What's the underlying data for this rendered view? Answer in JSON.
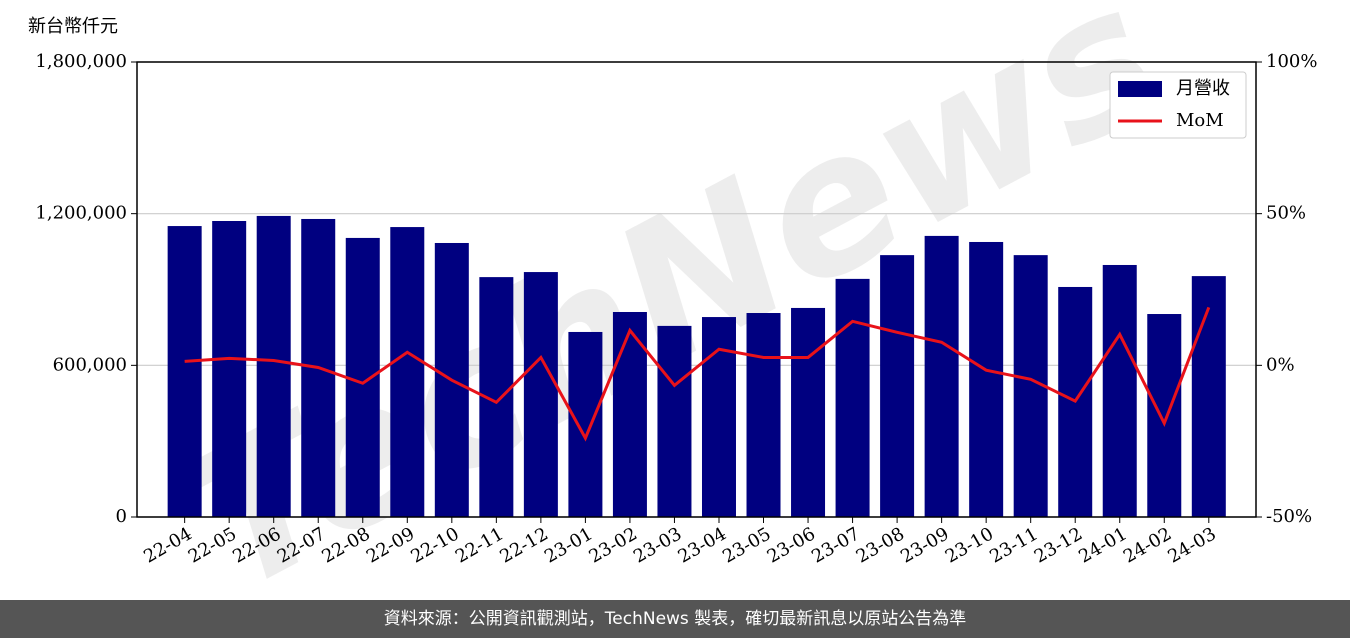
{
  "chart_data": {
    "type": "bar-line",
    "y_label": "新台幣仟元",
    "footer": "資料來源：公開資訊觀測站，TechNews 製表，確切最新訊息以原站公告為準",
    "watermark": "TechNews",
    "categories": [
      "22-04",
      "22-05",
      "22-06",
      "22-07",
      "22-08",
      "22-09",
      "22-10",
      "22-11",
      "22-12",
      "23-01",
      "23-02",
      "23-03",
      "23-04",
      "23-05",
      "23-06",
      "23-07",
      "23-08",
      "23-09",
      "23-10",
      "23-11",
      "23-12",
      "24-01",
      "24-02",
      "24-03"
    ],
    "series": [
      {
        "name": "月營收",
        "type": "bar",
        "color": "#000080",
        "values": [
          1151000,
          1171000,
          1191000,
          1179000,
          1104000,
          1147000,
          1084000,
          949000,
          969000,
          732000,
          811000,
          756000,
          791000,
          807000,
          827000,
          942000,
          1036000,
          1112000,
          1088000,
          1036000,
          910000,
          997000,
          803000,
          953000
        ]
      },
      {
        "name": "MoM",
        "type": "line",
        "axis": "y2",
        "color": "#e8121a",
        "values": [
          1.3,
          2.3,
          1.6,
          -0.7,
          -5.9,
          4.3,
          -4.9,
          -12.2,
          2.6,
          -24.0,
          11.5,
          -6.6,
          5.3,
          2.6,
          2.6,
          14.5,
          10.9,
          7.6,
          -1.6,
          -4.6,
          -11.8,
          10.2,
          -19.1,
          19.1
        ]
      }
    ],
    "ylim": [
      0,
      1800000
    ],
    "yticks": [
      0,
      {
        "value": 600000,
        "label": "600,000"
      },
      {
        "value": 1200000,
        "label": "1,200,000"
      },
      {
        "value": 1800000,
        "label": "1,800,000"
      }
    ],
    "y2lim": [
      -50,
      100
    ],
    "y2ticks": [
      {
        "value": -50,
        "label": "-50%"
      },
      {
        "value": 0,
        "label": "0%"
      },
      {
        "value": 50,
        "label": "50%"
      },
      {
        "value": 100,
        "label": "100%"
      }
    ],
    "grid": true,
    "legend": "upper right"
  }
}
